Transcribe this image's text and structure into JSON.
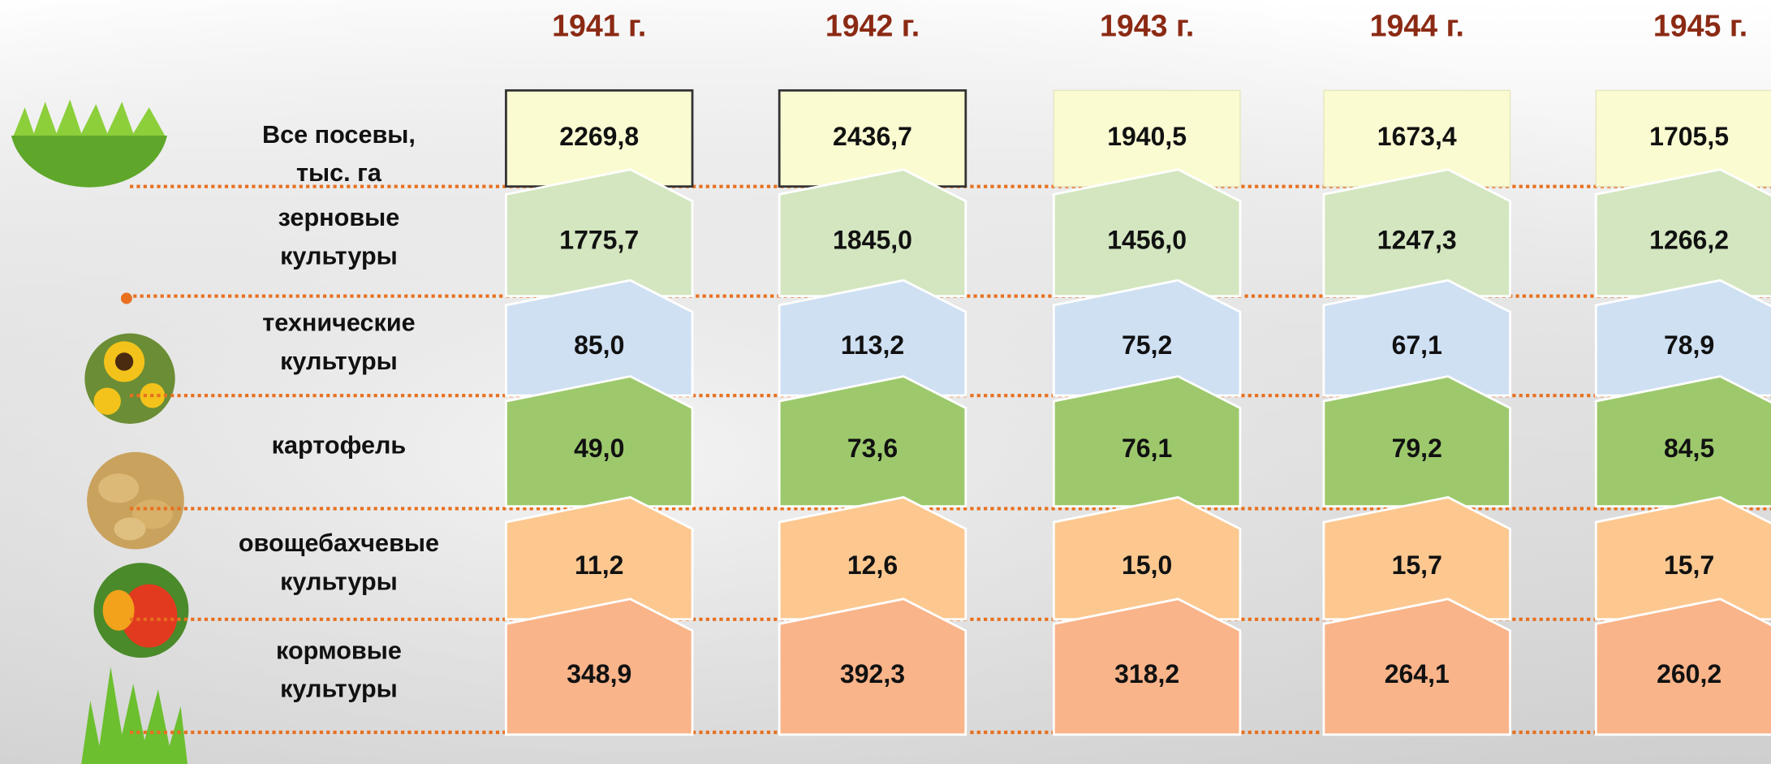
{
  "years": [
    "1941 г.",
    "1942 г.",
    "1943 г.",
    "1944 г.",
    "1945 г."
  ],
  "rows": [
    {
      "label": [
        "Все посевы,",
        "тыс. га"
      ],
      "values": [
        "2269,8",
        "2436,7",
        "1940,5",
        "1673,4",
        "1705,5"
      ]
    },
    {
      "label": [
        "зерновые",
        "культуры"
      ],
      "values": [
        "1775,7",
        "1845,0",
        "1456,0",
        "1247,3",
        "1266,2"
      ]
    },
    {
      "label": [
        "технические",
        "культуры"
      ],
      "values": [
        "85,0",
        "113,2",
        "75,2",
        "67,1",
        "78,9"
      ]
    },
    {
      "label": [
        "картофель"
      ],
      "values": [
        "49,0",
        "73,6",
        "76,1",
        "79,2",
        "84,5"
      ]
    },
    {
      "label": [
        "овощебахчевые",
        "культуры"
      ],
      "values": [
        "11,2",
        "12,6",
        "15,0",
        "15,7",
        "15,7"
      ]
    },
    {
      "label": [
        "кормовые",
        "культуры"
      ],
      "values": [
        "348,9",
        "392,3",
        "318,2",
        "264,1",
        "260,2"
      ]
    }
  ]
}
